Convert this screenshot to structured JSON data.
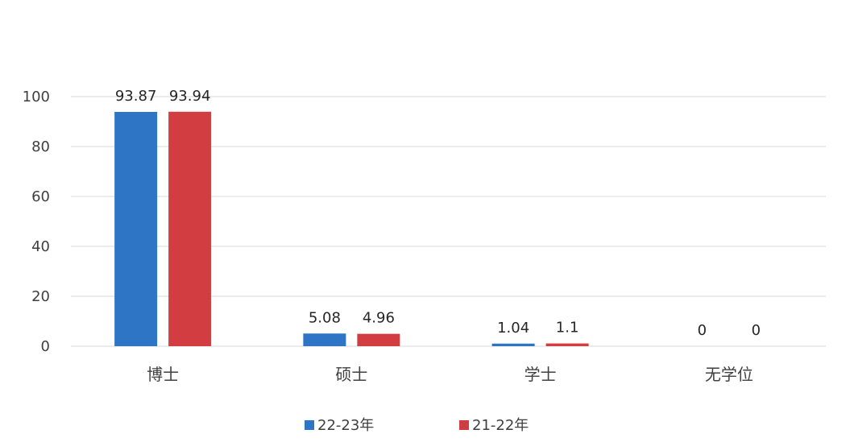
{
  "chart_data": {
    "type": "bar",
    "categories": [
      "博士",
      "硕士",
      "学士",
      "无学位"
    ],
    "series": [
      {
        "name": "22-23年",
        "values": [
          93.87,
          5.08,
          1.04,
          0
        ],
        "color": "#2e75c6"
      },
      {
        "name": "21-22年",
        "values": [
          93.94,
          4.96,
          1.1,
          0
        ],
        "color": "#d23d42"
      }
    ],
    "ylim": [
      0,
      100
    ],
    "yticks": [
      0,
      20,
      40,
      60,
      80,
      100
    ],
    "grid": true,
    "legend": "bottom",
    "data_labels": true
  }
}
